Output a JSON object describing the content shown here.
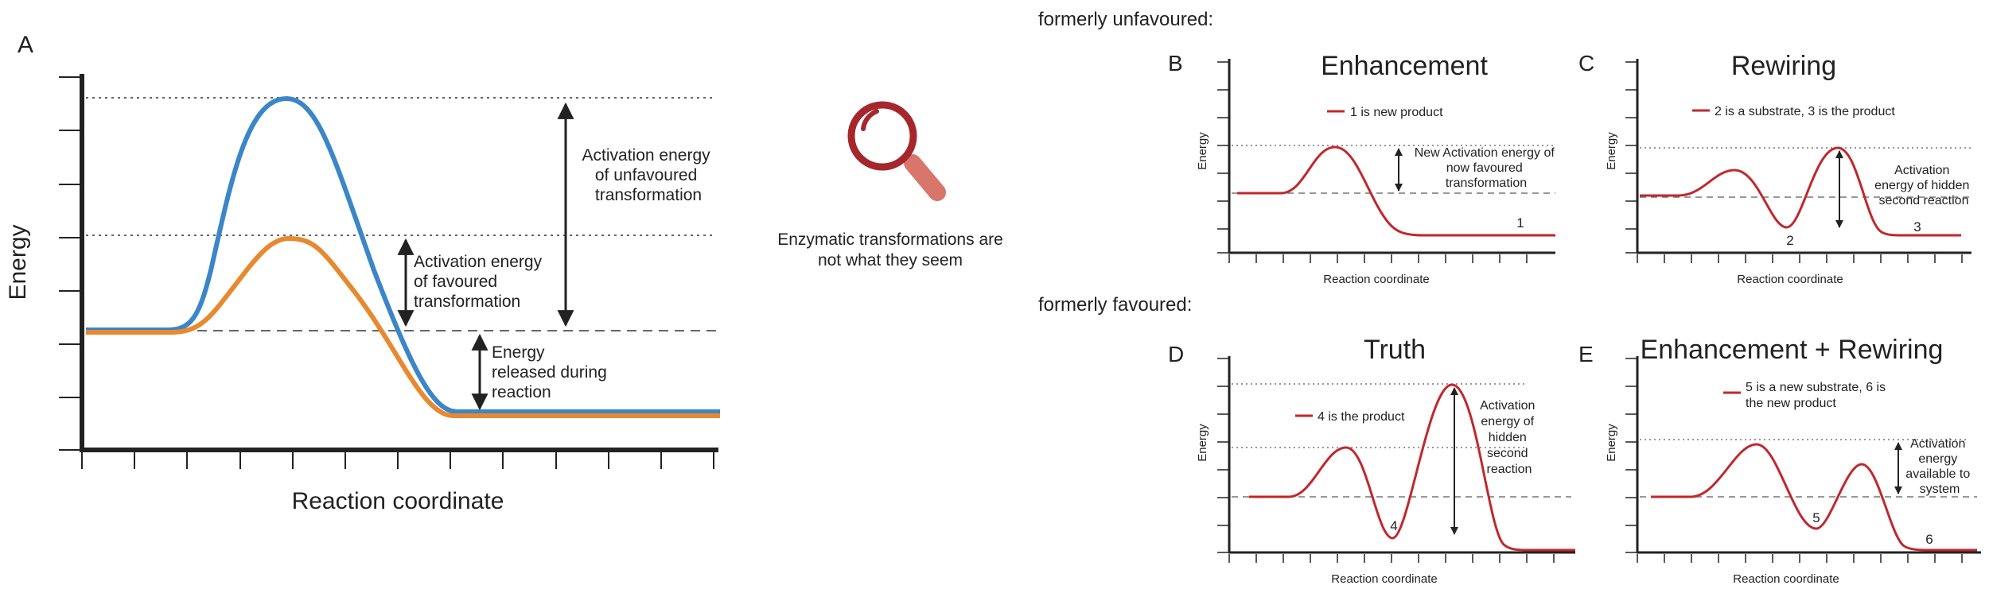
{
  "panelA": {
    "letter": "A",
    "ylabel": "Energy",
    "xlabel": "Reaction coordinate",
    "label_unfavoured": [
      "Activation energy",
      "of unfavoured",
      "transformation"
    ],
    "label_favoured": [
      "Activation energy",
      "of favoured",
      "transformation"
    ],
    "label_released": [
      "Energy",
      "released during",
      "reaction"
    ],
    "colors": {
      "blue": "#3a86c8",
      "orange": "#e8892f"
    }
  },
  "center": {
    "icon": "magnifying-glass-icon",
    "caption_line1": "Enzymatic transformations are",
    "caption_line2": "not what they seem"
  },
  "section_unfavoured": "formerly unfavoured:",
  "section_favoured": "formerly favoured:",
  "panels": [
    {
      "letter": "B",
      "title": "Enhancement",
      "legend": [
        "1 is new product"
      ],
      "annotation": [
        "New Activation energy of",
        "now favoured",
        "transformation"
      ],
      "numbers": [
        "1"
      ],
      "ylabel": "Energy",
      "xlabel": "Reaction coordinate"
    },
    {
      "letter": "C",
      "title": "Rewiring",
      "legend": [
        "2 is a substrate, 3 is the product"
      ],
      "annotation": [
        "Activation",
        "energy of hidden",
        "second reaction"
      ],
      "numbers": [
        "2",
        "3"
      ],
      "ylabel": "Energy",
      "xlabel": "Reaction coordinate"
    },
    {
      "letter": "D",
      "title": "Truth",
      "legend": [
        "4 is the product"
      ],
      "annotation": [
        "Activation",
        "energy of",
        "hidden",
        "second",
        "reaction"
      ],
      "numbers": [
        "4"
      ],
      "ylabel": "Energy",
      "xlabel": "Reaction coordinate"
    },
    {
      "letter": "E",
      "title": "Enhancement + Rewiring",
      "legend": [
        "5 is a new substrate, 6 is",
        "the new product"
      ],
      "annotation": [
        "Activation",
        "energy",
        "available to",
        "system"
      ],
      "numbers": [
        "5",
        "6"
      ],
      "ylabel": "Energy",
      "xlabel": "Reaction coordinate"
    }
  ],
  "curve_color": "#c0282d"
}
